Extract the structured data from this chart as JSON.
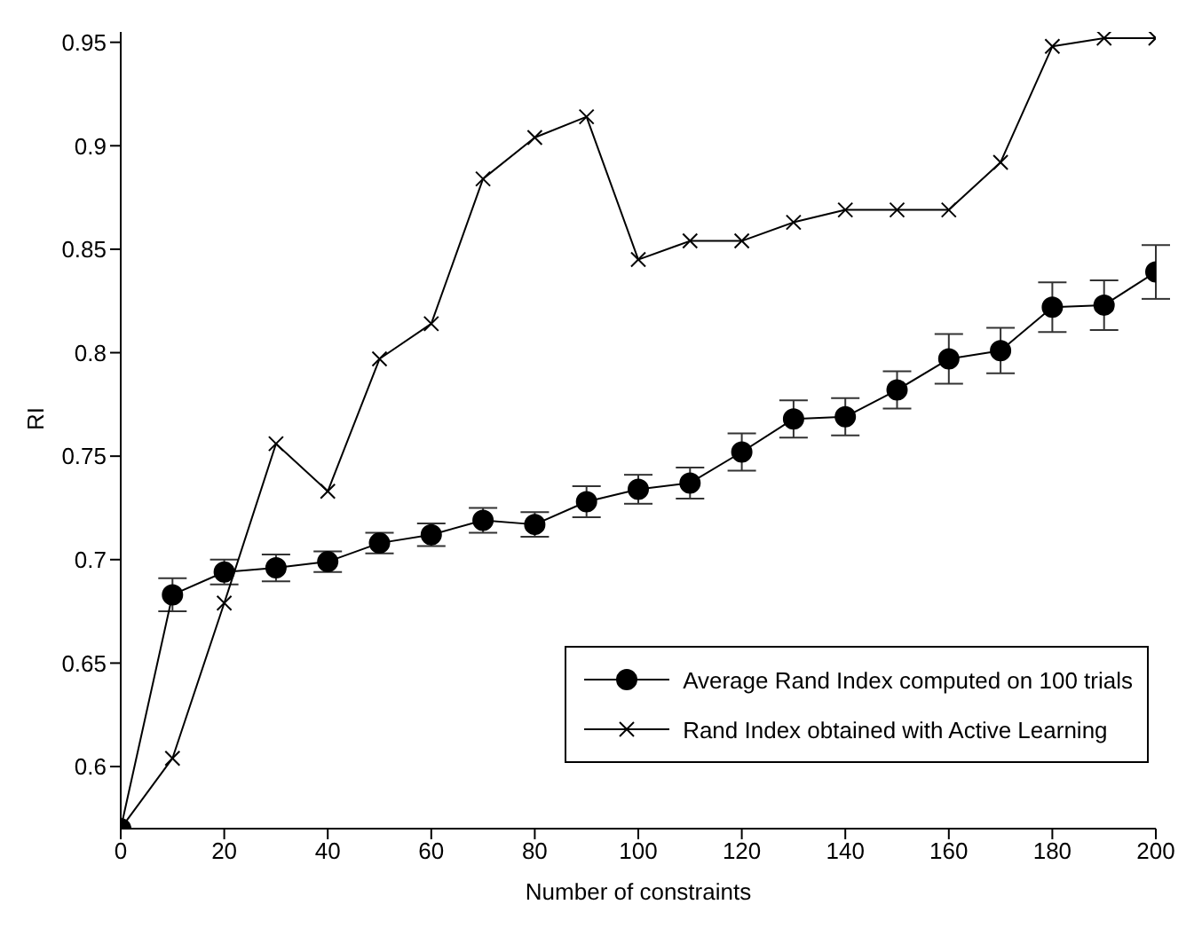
{
  "chart_data": {
    "type": "line",
    "xlabel": "Number of constraints",
    "ylabel": "RI",
    "x": [
      0,
      10,
      20,
      30,
      40,
      50,
      60,
      70,
      80,
      90,
      100,
      110,
      120,
      130,
      140,
      150,
      160,
      170,
      180,
      190,
      200
    ],
    "xlim": [
      0,
      200
    ],
    "xticks": [
      0,
      20,
      40,
      60,
      80,
      100,
      120,
      140,
      160,
      180,
      200
    ],
    "ylim": [
      0.57,
      0.955
    ],
    "yticks": [
      0.6,
      0.65,
      0.7,
      0.75,
      0.8,
      0.85,
      0.9,
      0.95
    ],
    "grid": false,
    "legend": "bottom right",
    "series": [
      {
        "name": "Average Rand Index computed on 100 trials",
        "color": "#000000",
        "marker": "circle",
        "values": [
          0.57,
          0.683,
          0.694,
          0.696,
          0.699,
          0.708,
          0.712,
          0.719,
          0.717,
          0.728,
          0.734,
          0.737,
          0.752,
          0.768,
          0.769,
          0.782,
          0.797,
          0.801,
          0.822,
          0.823,
          0.839
        ],
        "errors": [
          null,
          0.008,
          0.006,
          0.0065,
          0.005,
          0.005,
          0.0055,
          0.006,
          0.006,
          0.0075,
          0.007,
          0.0075,
          0.009,
          0.009,
          0.009,
          0.009,
          0.012,
          0.011,
          0.012,
          0.012,
          0.013
        ]
      },
      {
        "name": "Rand Index obtained with Active Learning",
        "color": "#000000",
        "marker": "cross",
        "values": [
          0.57,
          0.604,
          0.679,
          0.756,
          0.733,
          0.797,
          0.814,
          0.884,
          0.904,
          0.914,
          0.845,
          0.854,
          0.854,
          0.863,
          0.869,
          0.869,
          0.869,
          0.892,
          0.948,
          0.952,
          0.952
        ]
      }
    ]
  }
}
